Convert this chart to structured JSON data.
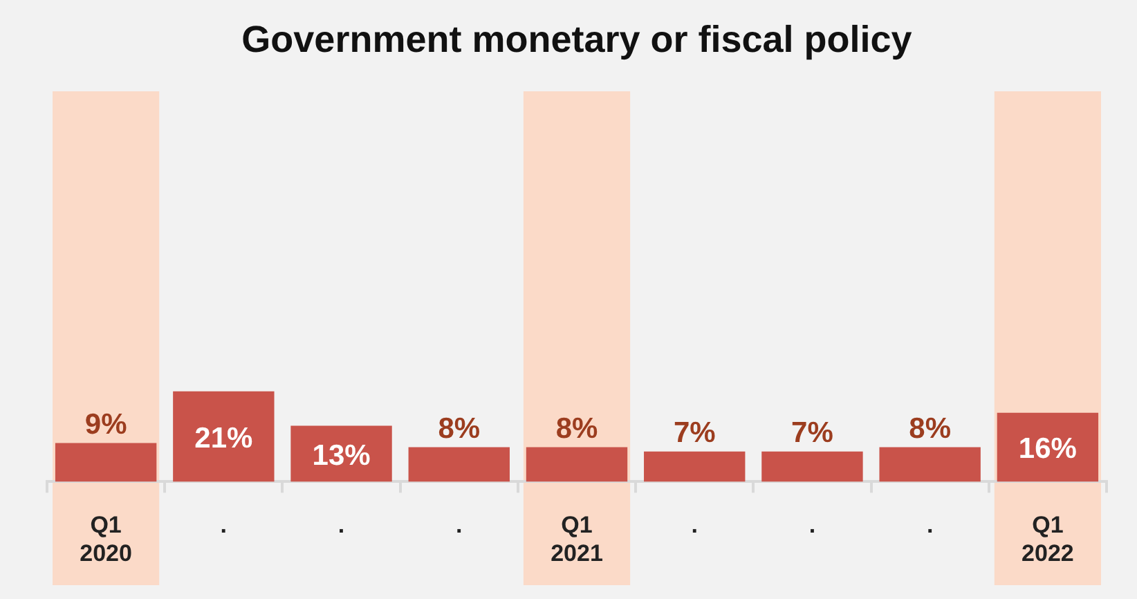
{
  "chart_data": {
    "type": "bar",
    "title": "Government monetary or fiscal policy",
    "categories": [
      "Q1 2020",
      ".",
      ".",
      ".",
      "Q1 2021",
      ".",
      ".",
      ".",
      "Q1 2022"
    ],
    "series": [
      {
        "color": "#c9534a",
        "values": [
          9,
          21,
          13,
          8,
          8,
          7,
          7,
          8,
          16
        ],
        "value_labels": [
          "9%",
          "21%",
          "13%",
          "8%",
          "8%",
          "7%",
          "7%",
          "8%",
          "16%"
        ]
      }
    ],
    "grid": false,
    "legend": false,
    "tick_labels": "x",
    "bands": [
      {
        "axis": "x",
        "from": "Q1 2020",
        "to": "Q1 2020",
        "color": "#fbdac8"
      },
      {
        "axis": "x",
        "from": "Q1 2021",
        "to": "Q1 2021",
        "color": "#fbdac8"
      },
      {
        "axis": "x",
        "from": "Q1 2022",
        "to": "Q1 2022",
        "color": "#fbdac8"
      }
    ]
  }
}
